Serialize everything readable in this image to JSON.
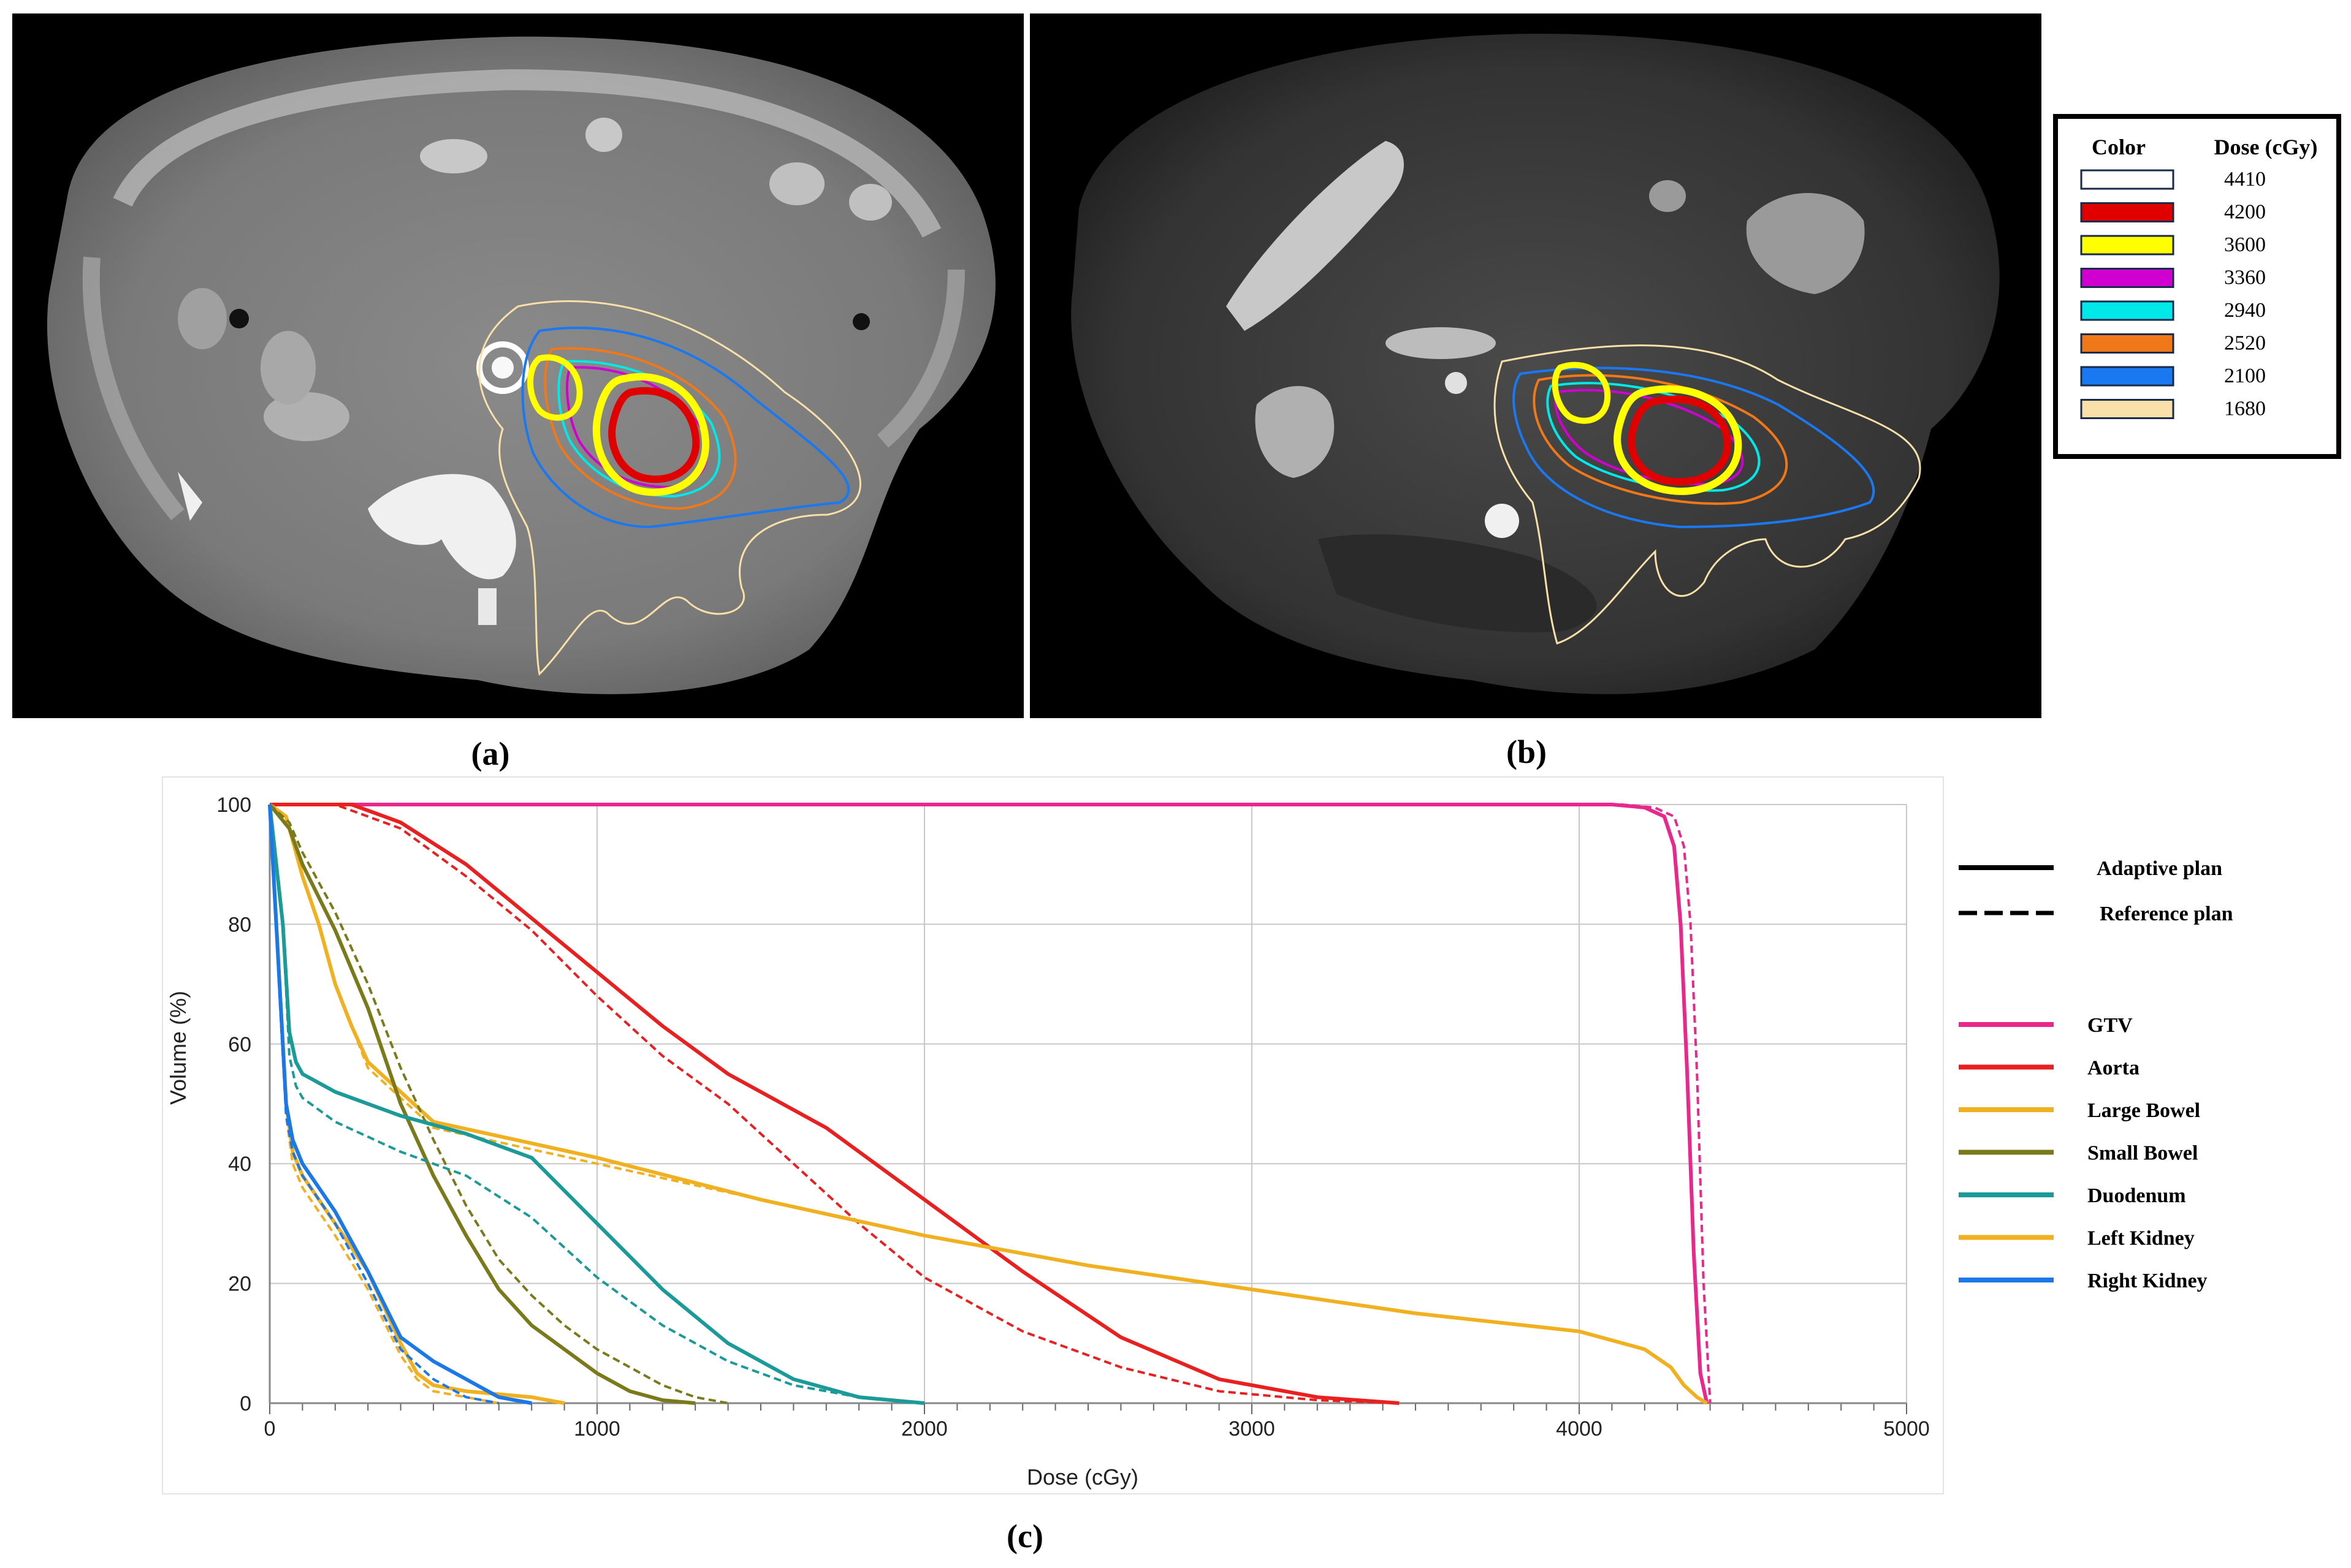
{
  "panels": {
    "a_label": "(a)",
    "b_label": "(b)",
    "c_label": "(c)"
  },
  "dose_legend": {
    "col_color": "Color",
    "col_dose": "Dose (cGy)",
    "entries": [
      {
        "dose": "4410",
        "color": "#ffffff"
      },
      {
        "dose": "4200",
        "color": "#e00000"
      },
      {
        "dose": "3600",
        "color": "#ffff00"
      },
      {
        "dose": "3360",
        "color": "#d000d0"
      },
      {
        "dose": "2940",
        "color": "#00e8e8"
      },
      {
        "dose": "2520",
        "color": "#f07818"
      },
      {
        "dose": "2100",
        "color": "#1a78f0"
      },
      {
        "dose": "1680",
        "color": "#f8e0a8"
      }
    ]
  },
  "line_legend": {
    "adaptive": "Adaptive plan",
    "reference": "Reference plan"
  },
  "chart_data": {
    "type": "line",
    "xlabel": "Dose (cGy)",
    "ylabel": "Volume (%)",
    "xlim": [
      0,
      5000
    ],
    "ylim": [
      0,
      100
    ],
    "xticks": [
      0,
      1000,
      2000,
      3000,
      4000,
      5000
    ],
    "yticks": [
      0,
      20,
      40,
      60,
      80,
      100
    ],
    "grid": true,
    "legend_position": "right",
    "series": [
      {
        "name": "GTV",
        "color": "#e8288c",
        "plan": "adaptive",
        "x": [
          0,
          4100,
          4200,
          4260,
          4290,
          4310,
          4330,
          4350,
          4370,
          4390
        ],
        "y": [
          100,
          100,
          99.5,
          98,
          93,
          80,
          55,
          25,
          5,
          0
        ]
      },
      {
        "name": "GTV",
        "color": "#e8288c",
        "plan": "reference",
        "x": [
          0,
          4130,
          4230,
          4290,
          4320,
          4340,
          4360,
          4380,
          4400
        ],
        "y": [
          100,
          100,
          99.5,
          98,
          93,
          80,
          55,
          20,
          0
        ]
      },
      {
        "name": "Aorta",
        "color": "#e82020",
        "plan": "adaptive",
        "x": [
          0,
          250,
          400,
          600,
          800,
          1000,
          1200,
          1400,
          1700,
          2000,
          2300,
          2600,
          2900,
          3200,
          3450
        ],
        "y": [
          100,
          100,
          97,
          90,
          81,
          72,
          63,
          55,
          46,
          34,
          22,
          11,
          4,
          1,
          0
        ]
      },
      {
        "name": "Aorta",
        "color": "#e82020",
        "plan": "reference",
        "x": [
          0,
          200,
          400,
          600,
          800,
          1000,
          1200,
          1400,
          1600,
          1800,
          2000,
          2300,
          2600,
          2900,
          3200,
          3450
        ],
        "y": [
          100,
          100,
          96,
          88,
          79,
          68,
          58,
          50,
          40,
          30,
          21,
          12,
          6,
          2,
          0.5,
          0
        ]
      },
      {
        "name": "Large Bowel",
        "color": "#f0b020",
        "plan": "adaptive",
        "x": [
          0,
          50,
          100,
          150,
          200,
          250,
          300,
          500,
          1000,
          1500,
          2000,
          2500,
          3000,
          3500,
          4000,
          4200,
          4280,
          4320,
          4360,
          4390
        ],
        "y": [
          100,
          98,
          88,
          80,
          70,
          63,
          57,
          47,
          41,
          34,
          28,
          23,
          19,
          15,
          12,
          9,
          6,
          3,
          1,
          0
        ]
      },
      {
        "name": "Large Bowel",
        "color": "#f0b020",
        "plan": "reference",
        "x": [
          0,
          50,
          100,
          150,
          200,
          250,
          300,
          500,
          1000,
          1500,
          2000,
          2500,
          3000,
          3500,
          4000,
          4200,
          4280,
          4320,
          4360,
          4390
        ],
        "y": [
          100,
          98,
          88,
          80,
          70,
          63,
          56,
          46,
          40,
          34,
          28,
          23,
          19,
          15,
          12,
          9,
          6,
          3,
          1,
          0
        ]
      },
      {
        "name": "Small Bowel",
        "color": "#7a7a1a",
        "plan": "adaptive",
        "x": [
          0,
          60,
          100,
          200,
          300,
          400,
          500,
          600,
          700,
          800,
          900,
          1000,
          1100,
          1200,
          1300
        ],
        "y": [
          100,
          96,
          90,
          79,
          66,
          50,
          38,
          28,
          19,
          13,
          9,
          5,
          2,
          0.5,
          0
        ]
      },
      {
        "name": "Small Bowel",
        "color": "#7a7a1a",
        "plan": "reference",
        "x": [
          0,
          60,
          100,
          200,
          300,
          400,
          500,
          600,
          700,
          800,
          900,
          1000,
          1100,
          1200,
          1300,
          1400
        ],
        "y": [
          100,
          97,
          92,
          82,
          70,
          56,
          44,
          33,
          24,
          18,
          13,
          9,
          6,
          3,
          1,
          0
        ]
      },
      {
        "name": "Duodenum",
        "color": "#1a9a98",
        "plan": "adaptive",
        "x": [
          0,
          40,
          60,
          80,
          100,
          200,
          400,
          600,
          800,
          1000,
          1200,
          1400,
          1600,
          1800,
          2000
        ],
        "y": [
          100,
          80,
          62,
          57,
          55,
          52,
          48,
          45,
          41,
          30,
          19,
          10,
          4,
          1,
          0
        ]
      },
      {
        "name": "Duodenum",
        "color": "#1a9a98",
        "plan": "reference",
        "x": [
          0,
          40,
          60,
          80,
          100,
          200,
          400,
          600,
          800,
          1000,
          1200,
          1400,
          1600,
          1800,
          2000
        ],
        "y": [
          100,
          80,
          58,
          53,
          51,
          47,
          42,
          38,
          31,
          21,
          13,
          7,
          3,
          1,
          0
        ]
      },
      {
        "name": "Left Kidney",
        "color": "#f0b020",
        "plan": "adaptive",
        "x": [
          0,
          30,
          50,
          70,
          100,
          200,
          300,
          400,
          450,
          500,
          600,
          800,
          900
        ],
        "y": [
          100,
          70,
          50,
          42,
          38,
          30,
          22,
          10,
          5,
          3,
          2,
          1,
          0
        ]
      },
      {
        "name": "Left Kidney",
        "color": "#f0b020",
        "plan": "reference",
        "x": [
          0,
          30,
          50,
          70,
          100,
          200,
          300,
          400,
          450,
          500,
          600,
          700
        ],
        "y": [
          100,
          68,
          48,
          40,
          36,
          28,
          19,
          8,
          4,
          2,
          1,
          0
        ]
      },
      {
        "name": "Right Kidney",
        "color": "#1a78e8",
        "plan": "adaptive",
        "x": [
          0,
          30,
          50,
          70,
          100,
          200,
          300,
          400,
          500,
          600,
          700,
          800
        ],
        "y": [
          100,
          70,
          50,
          44,
          40,
          32,
          22,
          11,
          7,
          4,
          1,
          0
        ]
      },
      {
        "name": "Right Kidney",
        "color": "#1a78e8",
        "plan": "reference",
        "x": [
          0,
          30,
          50,
          70,
          100,
          200,
          300,
          400,
          500,
          600,
          700
        ],
        "y": [
          100,
          68,
          48,
          42,
          38,
          30,
          20,
          9,
          4,
          1,
          0
        ]
      }
    ]
  }
}
